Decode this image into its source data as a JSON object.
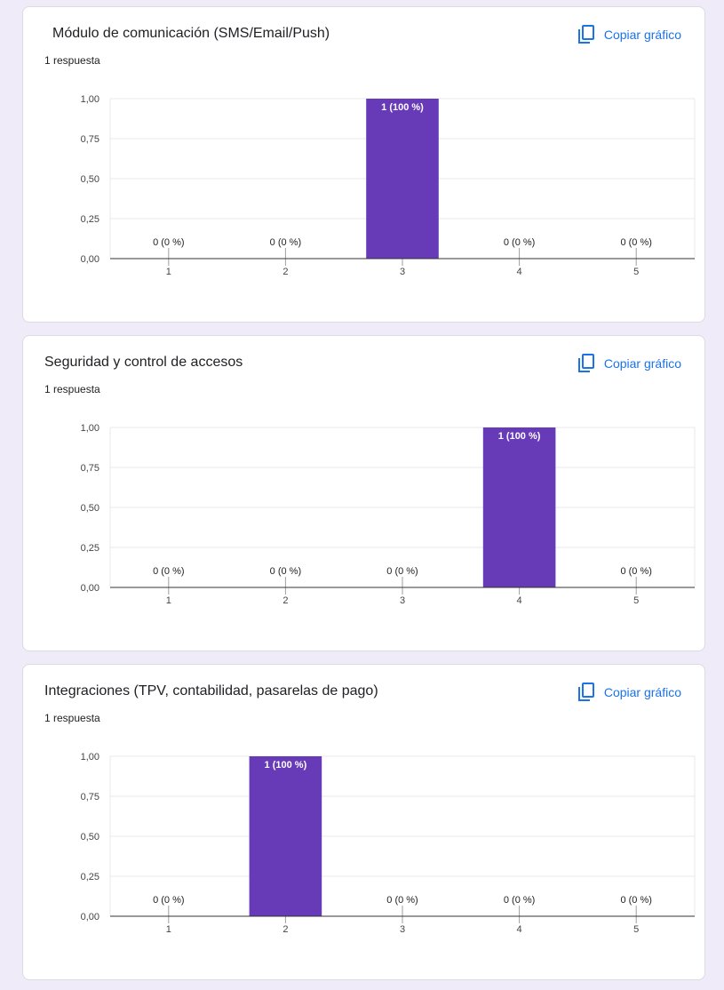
{
  "colors": {
    "bar": "#673ab7",
    "accent": "#1a73e8",
    "background": "#f0ebf8"
  },
  "cards": [
    {
      "title": "Módulo de comunicación (SMS/Email/Push)",
      "responses": "1 respuesta",
      "copy_label": "Copiar gráfico",
      "copy_icon": "copy-icon",
      "chart_data": {
        "type": "bar",
        "categories": [
          "1",
          "2",
          "3",
          "4",
          "5"
        ],
        "values": [
          0,
          0,
          1,
          0,
          0
        ],
        "data_labels": [
          "0 (0 %)",
          "0 (0 %)",
          "1 (100 %)",
          "0 (0 %)",
          "0 (0 %)"
        ],
        "yticks": [
          "0,00",
          "0,25",
          "0,50",
          "0,75",
          "1,00"
        ],
        "ylim": [
          0,
          1
        ],
        "grid": true,
        "xlabel": "",
        "ylabel": ""
      }
    },
    {
      "title": "Seguridad y control de accesos",
      "responses": "1 respuesta",
      "copy_label": "Copiar gráfico",
      "copy_icon": "copy-icon",
      "chart_data": {
        "type": "bar",
        "categories": [
          "1",
          "2",
          "3",
          "4",
          "5"
        ],
        "values": [
          0,
          0,
          0,
          1,
          0
        ],
        "data_labels": [
          "0 (0 %)",
          "0 (0 %)",
          "0 (0 %)",
          "1 (100 %)",
          "0 (0 %)"
        ],
        "yticks": [
          "0,00",
          "0,25",
          "0,50",
          "0,75",
          "1,00"
        ],
        "ylim": [
          0,
          1
        ],
        "grid": true,
        "xlabel": "",
        "ylabel": ""
      }
    },
    {
      "title": "Integraciones (TPV, contabilidad, pasarelas de pago)",
      "responses": "1 respuesta",
      "copy_label": "Copiar gráfico",
      "copy_icon": "copy-icon",
      "chart_data": {
        "type": "bar",
        "categories": [
          "1",
          "2",
          "3",
          "4",
          "5"
        ],
        "values": [
          0,
          1,
          0,
          0,
          0
        ],
        "data_labels": [
          "0 (0 %)",
          "1 (100 %)",
          "0 (0 %)",
          "0 (0 %)",
          "0 (0 %)"
        ],
        "yticks": [
          "0,00",
          "0,25",
          "0,50",
          "0,75",
          "1,00"
        ],
        "ylim": [
          0,
          1
        ],
        "grid": true,
        "xlabel": "",
        "ylabel": ""
      }
    }
  ]
}
